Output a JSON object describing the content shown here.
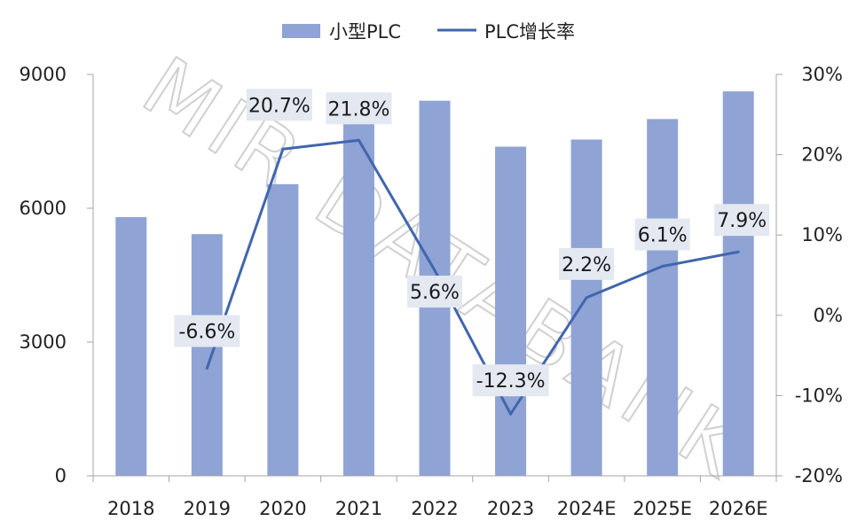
{
  "watermark": "MIR DATABANK",
  "chart_data": {
    "type": "bar",
    "categories": [
      "2018",
      "2019",
      "2020",
      "2021",
      "2022",
      "2023",
      "2024E",
      "2025E",
      "2026E"
    ],
    "series": [
      {
        "name": "小型PLC",
        "type": "bar",
        "axis": "left",
        "color": "#8fa3d4",
        "values": [
          5800,
          5420,
          6540,
          7960,
          8410,
          7380,
          7540,
          8000,
          8620
        ]
      },
      {
        "name": "PLC增长率",
        "type": "line",
        "axis": "right",
        "color": "#4166ae",
        "values": [
          null,
          -6.6,
          20.7,
          21.8,
          5.6,
          -12.3,
          2.2,
          6.1,
          7.9
        ],
        "labels": [
          null,
          "-6.6%",
          "20.7%",
          "21.8%",
          "5.6%",
          "-12.3%",
          "2.2%",
          "6.1%",
          "7.9%"
        ]
      }
    ],
    "left_axis": {
      "ticks": [
        0,
        3000,
        6000,
        9000
      ],
      "tick_labels": [
        "0",
        "3000",
        "6000",
        "9000"
      ],
      "ylim": [
        0,
        9000
      ]
    },
    "right_axis": {
      "ticks": [
        -20,
        -10,
        0,
        10,
        20,
        30
      ],
      "tick_labels": [
        "-20%",
        "-10%",
        "0%",
        "10%",
        "20%",
        "30%"
      ],
      "ylim": [
        -20,
        30
      ]
    },
    "legend": {
      "position": "top-center",
      "items": [
        "小型PLC",
        "PLC增长率"
      ]
    },
    "grid": false,
    "title": "",
    "xlabel": "",
    "ylabel": ""
  }
}
